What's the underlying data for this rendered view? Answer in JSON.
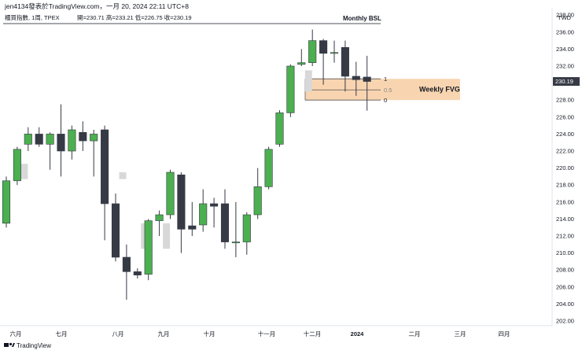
{
  "header": {
    "published": "jen4134發表於TradingView.com，一月 20, 2024 22:11 UTC+8",
    "instrument": "櫃買指數, 1周, TPEX",
    "ohlc": "開=230.71 高=233.21 低=226.75 收=230.19"
  },
  "currency": "TWD",
  "last_price_label": "230.19",
  "footer_brand": "TradingView",
  "annotations": {
    "bsl_label": "Monthly BSL",
    "fvg_label": "Weekly FVG",
    "fib_levels": [
      "1",
      "0.5",
      "0"
    ]
  },
  "colors": {
    "up": "#4caf50",
    "down": "#363a45",
    "fvg": "#f8d5b0",
    "wick": "#363a45",
    "ghost": "#d8d8d8"
  },
  "chart_data": {
    "type": "candlestick",
    "ylim": [
      201,
      239
    ],
    "y_ticks": [
      202,
      204,
      206,
      208,
      210,
      212,
      214,
      216,
      218,
      220,
      222,
      224,
      226,
      228,
      230,
      232,
      234,
      236,
      238
    ],
    "x_ticks": [
      "六月",
      "七月",
      "八月",
      "九月",
      "十月",
      "十一月",
      "十二月",
      "2024",
      "二月",
      "三月",
      "四月"
    ],
    "candles": [
      {
        "o": 213.5,
        "h": 219.0,
        "l": 213.0,
        "c": 218.5
      },
      {
        "o": 218.5,
        "h": 222.5,
        "l": 218.0,
        "c": 222.2
      },
      {
        "o": 222.8,
        "h": 224.8,
        "l": 222.0,
        "c": 224.0
      },
      {
        "o": 224.0,
        "h": 224.8,
        "l": 222.5,
        "c": 222.8
      },
      {
        "o": 222.8,
        "h": 224.2,
        "l": 219.8,
        "c": 224.0
      },
      {
        "o": 224.0,
        "h": 227.5,
        "l": 219.0,
        "c": 222.0
      },
      {
        "o": 222.0,
        "h": 225.0,
        "l": 221.0,
        "c": 224.5
      },
      {
        "o": 224.2,
        "h": 225.5,
        "l": 222.0,
        "c": 223.2
      },
      {
        "o": 223.2,
        "h": 224.5,
        "l": 219.0,
        "c": 224.0
      },
      {
        "o": 224.5,
        "h": 225.0,
        "l": 211.5,
        "c": 215.8
      },
      {
        "o": 215.8,
        "h": 217.0,
        "l": 209.0,
        "c": 209.5
      },
      {
        "o": 209.5,
        "h": 211.0,
        "l": 204.5,
        "c": 207.8
      },
      {
        "o": 207.8,
        "h": 208.2,
        "l": 207.0,
        "c": 207.4
      },
      {
        "o": 207.5,
        "h": 214.0,
        "l": 206.8,
        "c": 213.8
      },
      {
        "o": 213.8,
        "h": 215.0,
        "l": 212.0,
        "c": 214.5
      },
      {
        "o": 214.5,
        "h": 219.8,
        "l": 214.0,
        "c": 219.5
      },
      {
        "o": 219.2,
        "h": 219.5,
        "l": 210.0,
        "c": 212.8
      },
      {
        "o": 213.2,
        "h": 216.0,
        "l": 212.0,
        "c": 212.8
      },
      {
        "o": 213.3,
        "h": 217.5,
        "l": 212.5,
        "c": 215.8
      },
      {
        "o": 215.8,
        "h": 216.5,
        "l": 213.0,
        "c": 215.5
      },
      {
        "o": 215.8,
        "h": 217.5,
        "l": 210.5,
        "c": 211.3
      },
      {
        "o": 211.3,
        "h": 216.0,
        "l": 209.5,
        "c": 211.3
      },
      {
        "o": 211.3,
        "h": 214.8,
        "l": 209.8,
        "c": 214.5
      },
      {
        "o": 214.5,
        "h": 220.0,
        "l": 214.0,
        "c": 217.8
      },
      {
        "o": 217.8,
        "h": 222.5,
        "l": 217.5,
        "c": 222.2
      },
      {
        "o": 222.8,
        "h": 226.8,
        "l": 222.5,
        "c": 226.5
      },
      {
        "o": 226.5,
        "h": 232.2,
        "l": 226.0,
        "c": 232.0
      },
      {
        "o": 232.2,
        "h": 234.0,
        "l": 232.0,
        "c": 232.4
      },
      {
        "o": 232.4,
        "h": 236.3,
        "l": 232.0,
        "c": 235.0
      },
      {
        "o": 235.0,
        "h": 235.2,
        "l": 229.8,
        "c": 233.5
      },
      {
        "o": 233.5,
        "h": 235.0,
        "l": 232.4,
        "c": 233.6
      },
      {
        "o": 234.2,
        "h": 235.0,
        "l": 229.0,
        "c": 230.8
      },
      {
        "o": 230.8,
        "h": 232.5,
        "l": 228.5,
        "c": 230.4
      },
      {
        "o": 230.71,
        "h": 233.21,
        "l": 226.75,
        "c": 230.19
      }
    ],
    "ghost_candles": [
      {
        "index": 1,
        "top": 220.5,
        "bottom": 218.7
      },
      {
        "index": 10,
        "top": 219.5,
        "bottom": 218.7
      },
      {
        "index": 12,
        "top": 213.5,
        "bottom": 210.5
      },
      {
        "index": 14,
        "top": 213.5,
        "bottom": 210.5
      },
      {
        "index": 27,
        "top": 231.5,
        "bottom": 229.0
      }
    ],
    "fvg_zone": {
      "top": 230.5,
      "bottom": 228.0
    },
    "fib_values": [
      230.5,
      229.2,
      228.0
    ],
    "bsl_level": 236.3
  }
}
